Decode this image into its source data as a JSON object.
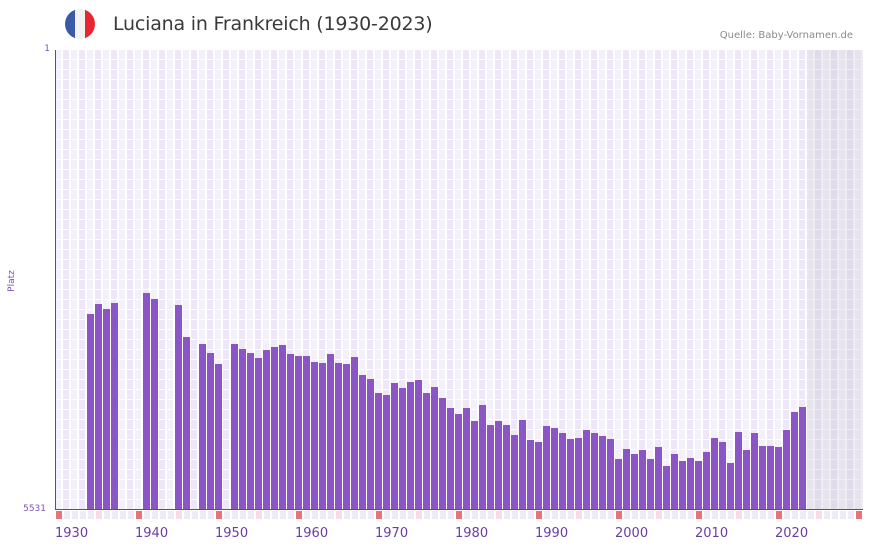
{
  "header": {
    "title": "Luciana in Frankreich (1930-2023)",
    "source": "Quelle: Baby-Vornamen.de",
    "flag": {
      "name": "france-flag",
      "colors": [
        "#3a5aa8",
        "#f2f2f2",
        "#e8262f"
      ]
    }
  },
  "axis": {
    "ylabel": "Platz",
    "ytick_top": "1",
    "ytick_bottom": "5531",
    "xticks": [
      "1930",
      "1940",
      "1950",
      "1960",
      "1970",
      "1980",
      "1990",
      "2000",
      "2010",
      "2020"
    ]
  },
  "colors": {
    "bar": "#8b55c8",
    "axis": "#6b3fa0",
    "decade_marker": "#e8737a",
    "half_decade_marker": "#f7dde3",
    "year_marker": "#efeaf8"
  },
  "chart_data": {
    "type": "bar",
    "title": "Luciana in Frankreich (1930-2023)",
    "source": "Quelle: Baby-Vornamen.de",
    "xlabel": "",
    "ylabel": "Platz",
    "ylim": [
      5531,
      1
    ],
    "y_inverted": true,
    "x_range": [
      1930,
      2030
    ],
    "future_shaded_from": 2024,
    "grid": true,
    "legend": null,
    "categories": [
      1934,
      1935,
      1936,
      1937,
      1941,
      1942,
      1945,
      1946,
      1948,
      1949,
      1950,
      1952,
      1953,
      1954,
      1955,
      1956,
      1957,
      1958,
      1959,
      1960,
      1961,
      1962,
      1963,
      1964,
      1965,
      1966,
      1967,
      1968,
      1969,
      1970,
      1971,
      1972,
      1973,
      1974,
      1975,
      1976,
      1977,
      1978,
      1979,
      1980,
      1981,
      1982,
      1983,
      1984,
      1985,
      1986,
      1987,
      1988,
      1989,
      1990,
      1991,
      1992,
      1993,
      1994,
      1995,
      1996,
      1997,
      1998,
      1999,
      2000,
      2001,
      2002,
      2003,
      2004,
      2005,
      2006,
      2007,
      2008,
      2009,
      2010,
      2011,
      2012,
      2013,
      2014,
      2015,
      2016,
      2017,
      2018,
      2019,
      2020,
      2021,
      2022,
      2023
    ],
    "values": [
      3175,
      3055,
      3114,
      3042,
      2922,
      2994,
      3066,
      3451,
      3535,
      3643,
      3776,
      3535,
      3595,
      3643,
      3703,
      3607,
      3571,
      3547,
      3655,
      3679,
      3679,
      3751,
      3763,
      3655,
      3763,
      3776,
      3691,
      3907,
      3955,
      4124,
      4148,
      4004,
      4064,
      3992,
      3968,
      4124,
      4052,
      4184,
      4304,
      4376,
      4304,
      4461,
      4268,
      4509,
      4461,
      4509,
      4629,
      4449,
      4689,
      4713,
      4521,
      4545,
      4605,
      4677,
      4665,
      4569,
      4605,
      4641,
      4677,
      4917,
      4797,
      4857,
      4809,
      4917,
      4773,
      5001,
      4857,
      4941,
      4905,
      4941,
      4833,
      4665,
      4713,
      4965,
      4593,
      4809,
      4605,
      4761,
      4761,
      4773,
      4569,
      4352,
      4292
    ]
  }
}
